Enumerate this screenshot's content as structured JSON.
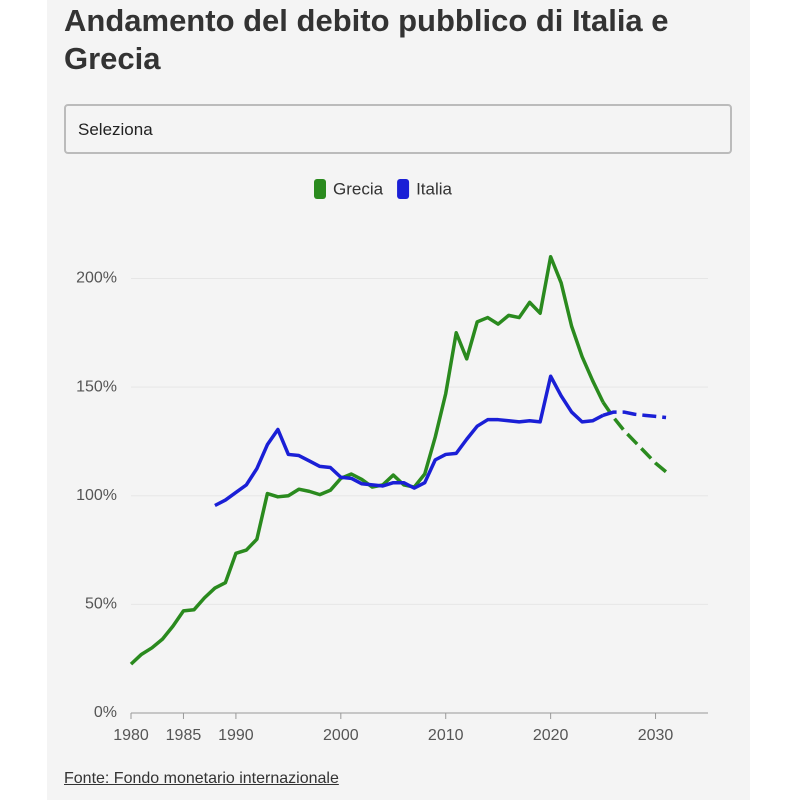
{
  "chart_data": {
    "type": "line",
    "title": "Andamento del debito pubblico di Italia e Grecia",
    "control": "Seleziona",
    "source": "Fonte: Fondo monetario internazionale",
    "x": [
      1980,
      1981,
      1982,
      1983,
      1984,
      1985,
      1986,
      1987,
      1988,
      1989,
      1990,
      1991,
      1992,
      1993,
      1994,
      1995,
      1996,
      1997,
      1998,
      1999,
      2000,
      2001,
      2002,
      2003,
      2004,
      2005,
      2006,
      2007,
      2008,
      2009,
      2010,
      2011,
      2012,
      2013,
      2014,
      2015,
      2016,
      2017,
      2018,
      2019,
      2020,
      2021,
      2022,
      2023,
      2024,
      2025,
      2026,
      2027,
      2028,
      2029,
      2030,
      2031
    ],
    "series": [
      {
        "name": "Grecia",
        "color": "#2a8a1e",
        "values": [
          22.5,
          27,
          30,
          34,
          40,
          47,
          47.5,
          53,
          57.5,
          60,
          73.5,
          75,
          80,
          101,
          99.5,
          100,
          103,
          102,
          100.5,
          102.5,
          108,
          110,
          107.5,
          104,
          105,
          109.5,
          105,
          104,
          110,
          127,
          147,
          175,
          163,
          180,
          182,
          179,
          183,
          182,
          189,
          184,
          210,
          198,
          178,
          164,
          153,
          143,
          136,
          130,
          125,
          120,
          115,
          111
        ]
      },
      {
        "name": "Italia",
        "color": "#1a1fd6",
        "values": [
          null,
          null,
          null,
          null,
          null,
          null,
          null,
          null,
          95.5,
          98,
          101.5,
          105,
          112.5,
          123.5,
          130.5,
          119,
          118.5,
          116,
          113.5,
          113,
          108.5,
          108,
          105.5,
          105,
          104.5,
          106,
          106,
          103.5,
          106,
          116.5,
          119,
          119.5,
          126,
          132,
          135,
          135,
          134.5,
          134,
          134.5,
          134,
          155,
          146,
          138.5,
          134,
          134.5,
          137,
          138.5,
          138.5,
          137.5,
          137,
          136.5,
          136
        ]
      }
    ],
    "forecast_from": 2026,
    "xlim": [
      1980,
      2035
    ],
    "xticks": [
      1980,
      1985,
      1990,
      2000,
      2010,
      2020,
      2030
    ],
    "ylim": [
      0,
      220
    ],
    "yticks": [
      {
        "value": 0,
        "label": "0%"
      },
      {
        "value": 50,
        "label": "50%"
      },
      {
        "value": 100,
        "label": "100%"
      },
      {
        "value": 150,
        "label": "150%"
      },
      {
        "value": 200,
        "label": "200%"
      }
    ],
    "grid": true,
    "legend": "top"
  }
}
